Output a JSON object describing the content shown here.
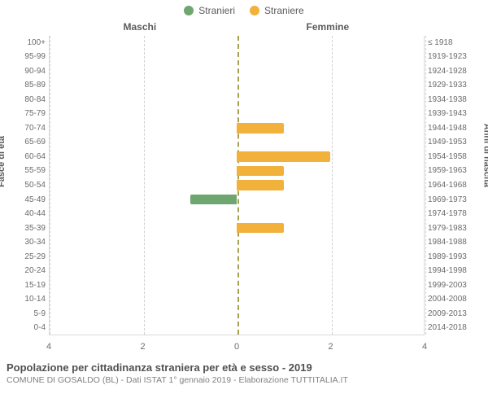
{
  "legend": {
    "male": {
      "label": "Stranieri",
      "color": "#6fa66f"
    },
    "female": {
      "label": "Straniere",
      "color": "#f1b13b"
    }
  },
  "chart": {
    "type": "pyramid-bar",
    "left_header": "Maschi",
    "right_header": "Femmine",
    "left_axis_title": "Fasce di età",
    "right_axis_title": "Anni di nascita",
    "x_max": 4,
    "x_ticks": [
      4,
      2,
      0,
      2,
      4
    ],
    "background_color": "#ffffff",
    "grid_color": "#d0d0d0",
    "center_line_color": "#a8a050",
    "label_fontsize": 10,
    "header_fontsize": 12,
    "rows": [
      {
        "age": "100+",
        "birth": "≤ 1918",
        "m": 0,
        "f": 0
      },
      {
        "age": "95-99",
        "birth": "1919-1923",
        "m": 0,
        "f": 0
      },
      {
        "age": "90-94",
        "birth": "1924-1928",
        "m": 0,
        "f": 0
      },
      {
        "age": "85-89",
        "birth": "1929-1933",
        "m": 0,
        "f": 0
      },
      {
        "age": "80-84",
        "birth": "1934-1938",
        "m": 0,
        "f": 0
      },
      {
        "age": "75-79",
        "birth": "1939-1943",
        "m": 0,
        "f": 0
      },
      {
        "age": "70-74",
        "birth": "1944-1948",
        "m": 0,
        "f": 1
      },
      {
        "age": "65-69",
        "birth": "1949-1953",
        "m": 0,
        "f": 0
      },
      {
        "age": "60-64",
        "birth": "1954-1958",
        "m": 0,
        "f": 2
      },
      {
        "age": "55-59",
        "birth": "1959-1963",
        "m": 0,
        "f": 1
      },
      {
        "age": "50-54",
        "birth": "1964-1968",
        "m": 0,
        "f": 1
      },
      {
        "age": "45-49",
        "birth": "1969-1973",
        "m": 1,
        "f": 0
      },
      {
        "age": "40-44",
        "birth": "1974-1978",
        "m": 0,
        "f": 0
      },
      {
        "age": "35-39",
        "birth": "1979-1983",
        "m": 0,
        "f": 1
      },
      {
        "age": "30-34",
        "birth": "1984-1988",
        "m": 0,
        "f": 0
      },
      {
        "age": "25-29",
        "birth": "1989-1993",
        "m": 0,
        "f": 0
      },
      {
        "age": "20-24",
        "birth": "1994-1998",
        "m": 0,
        "f": 0
      },
      {
        "age": "15-19",
        "birth": "1999-2003",
        "m": 0,
        "f": 0
      },
      {
        "age": "10-14",
        "birth": "2004-2008",
        "m": 0,
        "f": 0
      },
      {
        "age": "5-9",
        "birth": "2009-2013",
        "m": 0,
        "f": 0
      },
      {
        "age": "0-4",
        "birth": "2014-2018",
        "m": 0,
        "f": 0
      }
    ]
  },
  "caption": {
    "title": "Popolazione per cittadinanza straniera per età e sesso - 2019",
    "subtitle": "COMUNE DI GOSALDO (BL) - Dati ISTAT 1° gennaio 2019 - Elaborazione TUTTITALIA.IT"
  }
}
